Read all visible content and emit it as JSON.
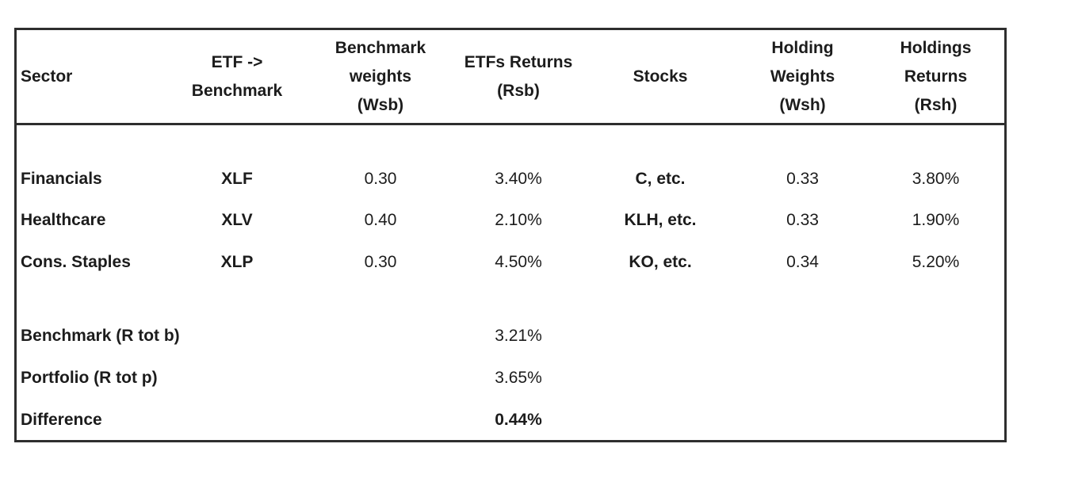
{
  "colors": {
    "background": "#ffffff",
    "border": "#2e2e2e",
    "text": "#1c1c1c"
  },
  "table": {
    "headers": {
      "sector": "Sector",
      "etf": "ETF ->\nBenchmark",
      "wsb": "Benchmark\nweights\n(Wsb)",
      "rsb": "ETFs Returns\n(Rsb)",
      "stocks": "Stocks",
      "wsh": "Holding\nWeights\n(Wsh)",
      "rsh": "Holdings\nReturns\n(Rsh)"
    },
    "rows": [
      {
        "sector": "Financials",
        "etf": "XLF",
        "wsb": "0.30",
        "rsb": "3.40%",
        "stocks": "C, etc.",
        "wsh": "0.33",
        "rsh": "3.80%"
      },
      {
        "sector": "Healthcare",
        "etf": "XLV",
        "wsb": "0.40",
        "rsb": "2.10%",
        "stocks": "KLH, etc.",
        "wsh": "0.33",
        "rsh": "1.90%"
      },
      {
        "sector": "Cons. Staples",
        "etf": "XLP",
        "wsb": "0.30",
        "rsb": "4.50%",
        "stocks": "KO, etc.",
        "wsh": "0.34",
        "rsh": "5.20%"
      }
    ],
    "summary": [
      {
        "label": "Benchmark (R tot b)",
        "value": "3.21%"
      },
      {
        "label": "Portfolio (R tot p)",
        "value": "3.65%"
      },
      {
        "label": "Difference",
        "value": "0.44%"
      }
    ]
  }
}
